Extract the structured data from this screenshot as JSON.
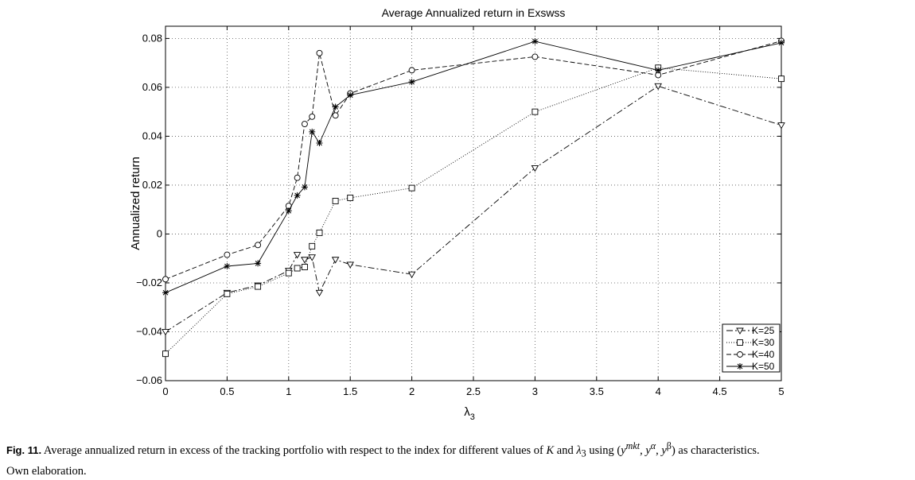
{
  "chart_data": {
    "type": "line",
    "title": "Average Annualized return in Exswss",
    "xlabel": "λ",
    "xlabel_sub": "3",
    "ylabel": "Annualized return",
    "xlim": [
      0,
      5
    ],
    "ylim": [
      -0.06,
      0.085
    ],
    "xticks": [
      0,
      0.5,
      1,
      1.5,
      2,
      2.5,
      3,
      3.5,
      4,
      4.5,
      5
    ],
    "xtick_labels": [
      "0",
      "0.5",
      "1",
      "1.5",
      "2",
      "2.5",
      "3",
      "3.5",
      "4",
      "4.5",
      "5"
    ],
    "yticks": [
      -0.06,
      -0.04,
      -0.02,
      0,
      0.02,
      0.04,
      0.06,
      0.08
    ],
    "ytick_labels": [
      "−0.06",
      "−0.04",
      "−0.02",
      "0",
      "0.02",
      "0.04",
      "0.06",
      "0.08"
    ],
    "grid": true,
    "legend_position": "bottom-right",
    "series": [
      {
        "name": "K=25",
        "marker": "triangle-down",
        "line_style": "dash-dot",
        "x": [
          0,
          0.5,
          0.75,
          1,
          1.07,
          1.13,
          1.19,
          1.25,
          1.38,
          1.5,
          2,
          3,
          4,
          5
        ],
        "y": [
          -0.04,
          -0.024,
          -0.021,
          -0.015,
          -0.0085,
          -0.0105,
          -0.0095,
          -0.024,
          -0.0105,
          -0.0125,
          -0.0165,
          0.027,
          0.0605,
          0.0445
        ]
      },
      {
        "name": "K=30",
        "marker": "square",
        "line_style": "dotted",
        "x": [
          0,
          0.5,
          0.75,
          1,
          1.07,
          1.13,
          1.19,
          1.25,
          1.38,
          1.5,
          2,
          3,
          4,
          5
        ],
        "y": [
          -0.049,
          -0.0245,
          -0.0215,
          -0.016,
          -0.014,
          -0.0135,
          -0.005,
          0.0005,
          0.0135,
          0.0148,
          0.0188,
          0.05,
          0.068,
          0.0635
        ]
      },
      {
        "name": "K=40",
        "marker": "circle",
        "line_style": "dashed",
        "x": [
          0,
          0.5,
          0.75,
          1,
          1.07,
          1.13,
          1.19,
          1.25,
          1.38,
          1.5,
          2,
          3,
          4,
          5
        ],
        "y": [
          -0.0185,
          -0.0085,
          -0.0045,
          0.0115,
          0.023,
          0.045,
          0.048,
          0.074,
          0.0485,
          0.0575,
          0.067,
          0.0725,
          0.065,
          0.079
        ]
      },
      {
        "name": "K=50",
        "marker": "star",
        "line_style": "solid",
        "x": [
          0,
          0.5,
          0.75,
          1,
          1.07,
          1.13,
          1.19,
          1.25,
          1.38,
          1.5,
          2,
          3,
          4,
          5
        ],
        "y": [
          -0.024,
          -0.0132,
          -0.012,
          0.0095,
          0.0158,
          0.0192,
          0.0418,
          0.0372,
          0.052,
          0.0568,
          0.0622,
          0.0788,
          0.067,
          0.0782
        ]
      }
    ]
  },
  "caption": {
    "label": "Fig. 11.",
    "text_before": " Average annualized return in excess of the tracking portfolio with respect to the index for different values of ",
    "var_k": "K",
    "text_and": " and ",
    "var_lambda": "λ",
    "var_lambda_sub": "3",
    "text_using": " using (",
    "var_y1": "y",
    "var_y1_sup": "mkt",
    "text_comma1": ", ",
    "var_y2": "y",
    "var_y2_sup": "α",
    "text_comma2": ", ",
    "var_y3": "y",
    "var_y3_sup": "β",
    "text_after": ") as characteristics.",
    "line2": "Own elaboration."
  }
}
